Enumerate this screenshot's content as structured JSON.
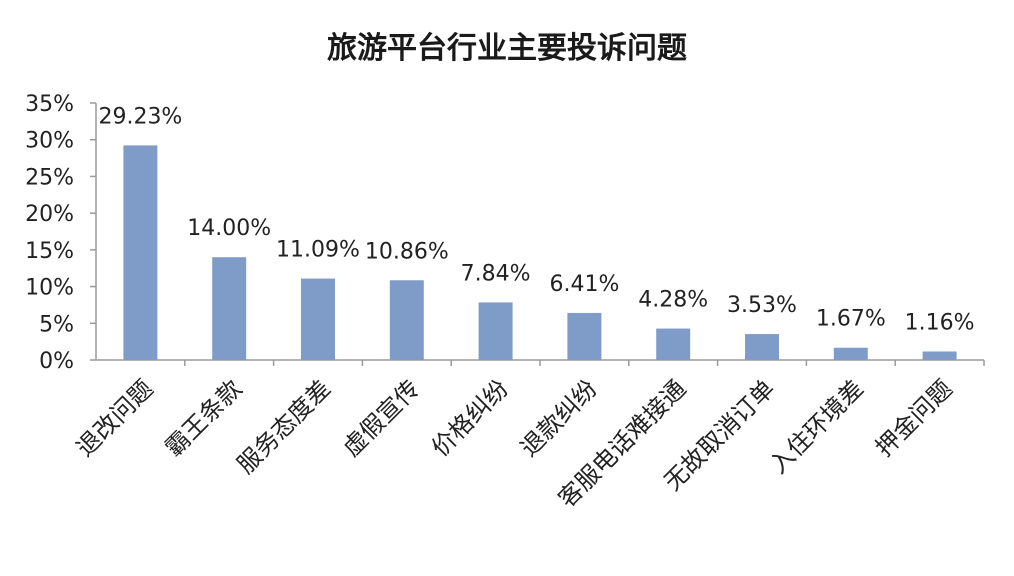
{
  "chart_data": {
    "type": "bar",
    "title": "旅游平台行业主要投诉问题",
    "xlabel": "",
    "ylabel": "",
    "categories": [
      "退改问题",
      "霸王条款",
      "服务态度差",
      "虚假宣传",
      "价格纠纷",
      "退款纠纷",
      "客服电话难接通",
      "无故取消订单",
      "入住环境差",
      "押金问题"
    ],
    "values": [
      29.23,
      14.0,
      11.09,
      10.86,
      7.84,
      6.41,
      4.28,
      3.53,
      1.67,
      1.16
    ],
    "data_labels": [
      "29.23%",
      "14.00%",
      "11.09%",
      "10.86%",
      "7.84%",
      "6.41%",
      "4.28%",
      "3.53%",
      "1.67%",
      "1.16%"
    ],
    "ylim": [
      0,
      35
    ],
    "yticks": [
      0,
      5,
      10,
      15,
      20,
      25,
      30,
      35
    ],
    "ytick_labels": [
      "0%",
      "5%",
      "10%",
      "15%",
      "20%",
      "25%",
      "30%",
      "35%"
    ],
    "grid": false,
    "legend": "none",
    "bar_color": "#7f9cc8",
    "axis_color": "#9a9a9a"
  }
}
